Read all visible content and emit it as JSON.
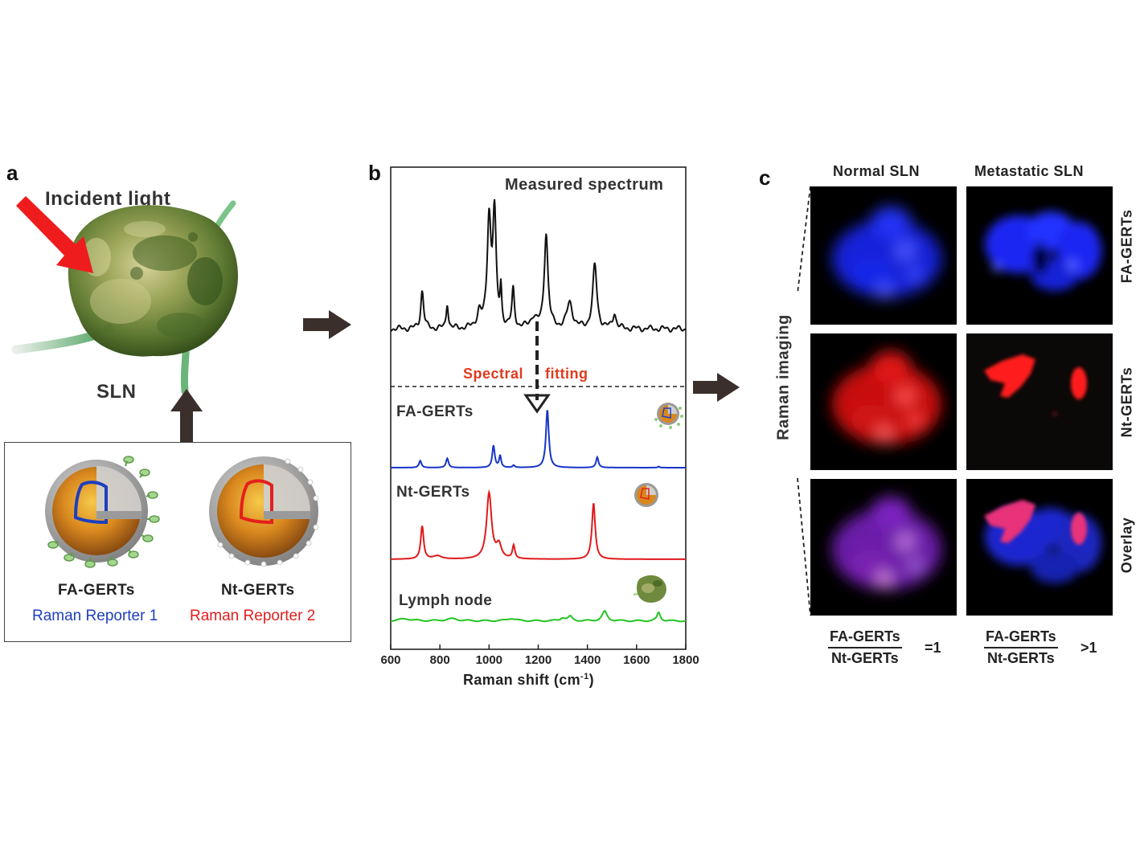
{
  "panel_a": {
    "letter": "a",
    "incident_light_label": "Incident light",
    "node_label": "SLN",
    "particle_1": {
      "name": "FA-GERTs",
      "reporter": "Raman Reporter 1",
      "reporter_color": "#1f3fbf",
      "ring_color": "#1d3fbf"
    },
    "particle_2": {
      "name": "Nt-GERTs",
      "reporter": "Raman Reporter 2",
      "reporter_color": "#e02020",
      "ring_color": "#e3201c"
    }
  },
  "panel_b": {
    "letter": "b",
    "measured_label": "Measured spectrum",
    "fitting_label_1": "Spectral",
    "fitting_label_2": "fitting",
    "fitting_color": "#e03a1e",
    "traces": [
      {
        "name": "FA-GERTs",
        "color": "#1834c8"
      },
      {
        "name": "Nt-GERTs",
        "color": "#e01a1a"
      },
      {
        "name": "Lymph node",
        "color": "#22c422"
      }
    ]
  },
  "chart_data": {
    "type": "line",
    "xlabel": "Raman shift (cm",
    "xlabel_sup": "-1",
    "xlabel_close": ")",
    "xlim": [
      600,
      1800
    ],
    "ticks": [
      600,
      800,
      1000,
      1200,
      1400,
      1600,
      1800
    ],
    "series": [
      {
        "name": "Measured spectrum",
        "color": "#111111",
        "baseline": 0.03,
        "peaks": [
          [
            728,
            0.3,
            7
          ],
          [
            830,
            0.2,
            5
          ],
          [
            960,
            0.12,
            10
          ],
          [
            1000,
            0.85,
            9
          ],
          [
            1022,
            0.88,
            8
          ],
          [
            1048,
            0.28,
            4
          ],
          [
            1098,
            0.3,
            6
          ],
          [
            1180,
            0.08,
            15
          ],
          [
            1232,
            0.75,
            9
          ],
          [
            1328,
            0.2,
            14
          ],
          [
            1430,
            0.5,
            10
          ],
          [
            1510,
            0.12,
            8
          ]
        ]
      },
      {
        "name": "FA-GERTs",
        "color": "#1834c8",
        "baseline": 0.0,
        "peaks": [
          [
            720,
            0.12,
            6
          ],
          [
            830,
            0.16,
            6
          ],
          [
            1018,
            0.38,
            6
          ],
          [
            1045,
            0.2,
            5
          ],
          [
            1100,
            0.04,
            5
          ],
          [
            1237,
            1.0,
            7
          ],
          [
            1440,
            0.18,
            6
          ],
          [
            1690,
            0.02,
            4
          ]
        ]
      },
      {
        "name": "Nt-GERTs",
        "color": "#e01a1a",
        "baseline": 0.0,
        "peaks": [
          [
            728,
            0.5,
            7
          ],
          [
            790,
            0.05,
            20
          ],
          [
            1000,
            1.0,
            12
          ],
          [
            1040,
            0.2,
            12
          ],
          [
            1100,
            0.2,
            6
          ],
          [
            1425,
            0.85,
            8
          ]
        ]
      },
      {
        "name": "Lymph node",
        "color": "#22c422",
        "baseline": 0.05,
        "peaks": [
          [
            660,
            0.1,
            30
          ],
          [
            850,
            0.1,
            30
          ],
          [
            1090,
            0.12,
            20
          ],
          [
            1300,
            0.15,
            12
          ],
          [
            1330,
            0.2,
            10
          ],
          [
            1470,
            0.45,
            12
          ],
          [
            1690,
            0.4,
            8
          ]
        ]
      }
    ]
  },
  "panel_c": {
    "letter": "c",
    "col_1": "Normal SLN",
    "col_2": "Metastatic SLN",
    "rows": [
      "FA-GERTs",
      "Nt-GERTs",
      "Overlay"
    ],
    "side_label": "Raman imaging",
    "ratio_1": {
      "num": "FA-GERTs",
      "den": "Nt-GERTs",
      "rel": "=1"
    },
    "ratio_2": {
      "num": "FA-GERTs",
      "den": "Nt-GERTs",
      "rel": ">1"
    }
  }
}
